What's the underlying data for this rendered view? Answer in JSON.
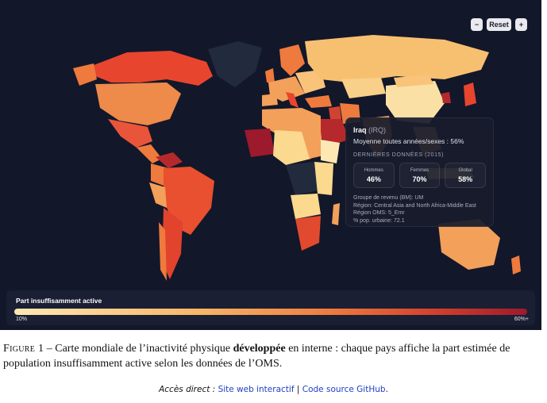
{
  "map": {
    "controls": {
      "zoom_out": "−",
      "reset": "Reset",
      "zoom_in": "+"
    },
    "colors": {
      "ocean": "#13172a",
      "no_data": "#222a3d"
    },
    "tooltip": {
      "country": "Iraq",
      "code": "(IRQ)",
      "average": "Moyenne toutes années/sexes : 56%",
      "section": "DERNIÈRES DONNÉES (2015)",
      "stats": [
        {
          "label": "Hommes",
          "value": "46%"
        },
        {
          "label": "Femmes",
          "value": "70%"
        },
        {
          "label": "Global",
          "value": "58%"
        }
      ],
      "meta": [
        "Groupe de revenu (BM): UM",
        "Région: Central Asia and North Africa-Middle East",
        "Région OMS: 5_Emr",
        "% pop. urbaine: 72.1"
      ]
    },
    "legend": {
      "title": "Part insuffisamment active",
      "min": "10%",
      "max": "60%+",
      "gradient": [
        "#fde7b3",
        "#f9b868",
        "#ee7a3d",
        "#d2402d",
        "#9c1a2c"
      ]
    }
  },
  "caption": {
    "label": "Figure 1",
    "text_before": " – Carte mondiale de l’inactivité physique ",
    "emphasis": "développée",
    "text_after": " en interne : chaque pays affiche la part estimée de population insuffisamment active selon les données de l’OMS."
  },
  "links": {
    "prefix": "Accès direct :",
    "site": "Site web interactif",
    "separator": "|",
    "source": "Code source GitHub",
    "suffix": "."
  }
}
